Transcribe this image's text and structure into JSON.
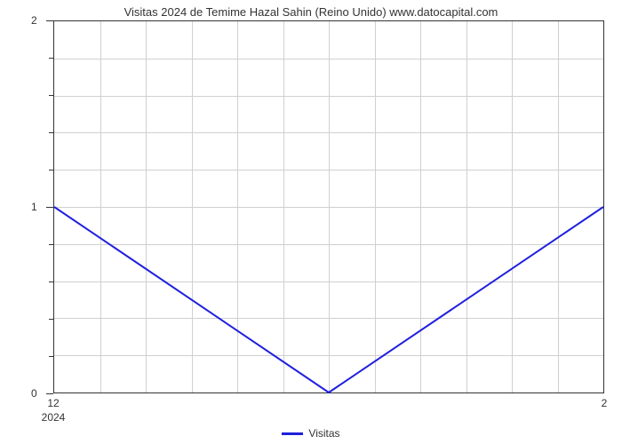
{
  "chart": {
    "type": "line",
    "title": "Visitas 2024 de Temime Hazal Sahin (Reino Unido) www.datocapital.com",
    "title_fontsize": 13,
    "title_color": "#333333",
    "background_color": "#ffffff",
    "border_color": "#333333",
    "grid_color": "#d0d0d0",
    "line_color": "#1f1fdd",
    "line_width": 2,
    "x_values": [
      0,
      0.5,
      1
    ],
    "y_values": [
      1,
      0,
      1
    ],
    "ylim": [
      0,
      2
    ],
    "xlim": [
      0,
      1
    ],
    "y_major_ticks": [
      0,
      1,
      2
    ],
    "y_minor_ticks": [
      0.2,
      0.4,
      0.6,
      0.8,
      1.2,
      1.4,
      1.6,
      1.8
    ],
    "y_tick_labels": [
      "0",
      "1",
      "2"
    ],
    "x_tick_left": "12",
    "x_tick_right": "2",
    "x_year": "2024",
    "vertical_grid_count": 12,
    "legend_label": "Visitas",
    "label_fontsize": 12,
    "label_color": "#333333"
  }
}
